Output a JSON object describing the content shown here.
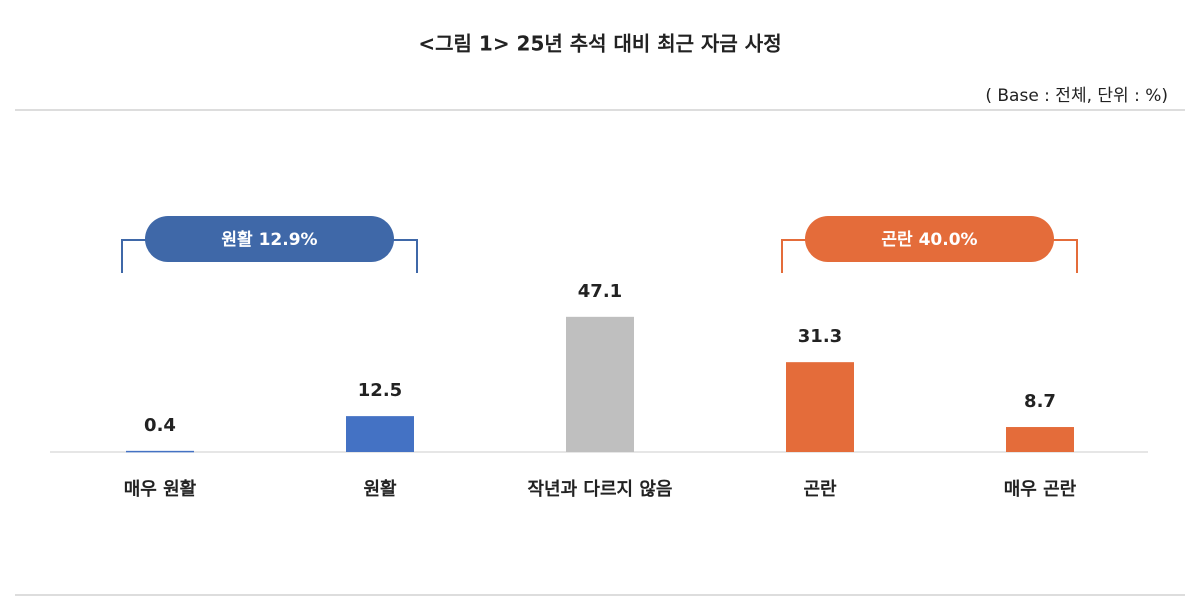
{
  "chart_data": {
    "type": "bar",
    "title": "<그림 1> 25년 추석 대비 최근 자금 사정",
    "subtitle": "( Base : 전체, 단위 : %)",
    "categories": [
      "매우 원활",
      "원활",
      "작년과 다르지 않음",
      "곤란",
      "매우 곤란"
    ],
    "values": [
      0.4,
      12.5,
      47.1,
      31.3,
      8.7
    ],
    "colors": [
      "#4472c4",
      "#4472c4",
      "#bfbfbf",
      "#e46c3a",
      "#e46c3a"
    ],
    "annotations": [
      {
        "text": "원활 12.9%",
        "color": "#3f68a8"
      },
      {
        "text": "곤란 40.0%",
        "color": "#e46c3a"
      }
    ]
  }
}
